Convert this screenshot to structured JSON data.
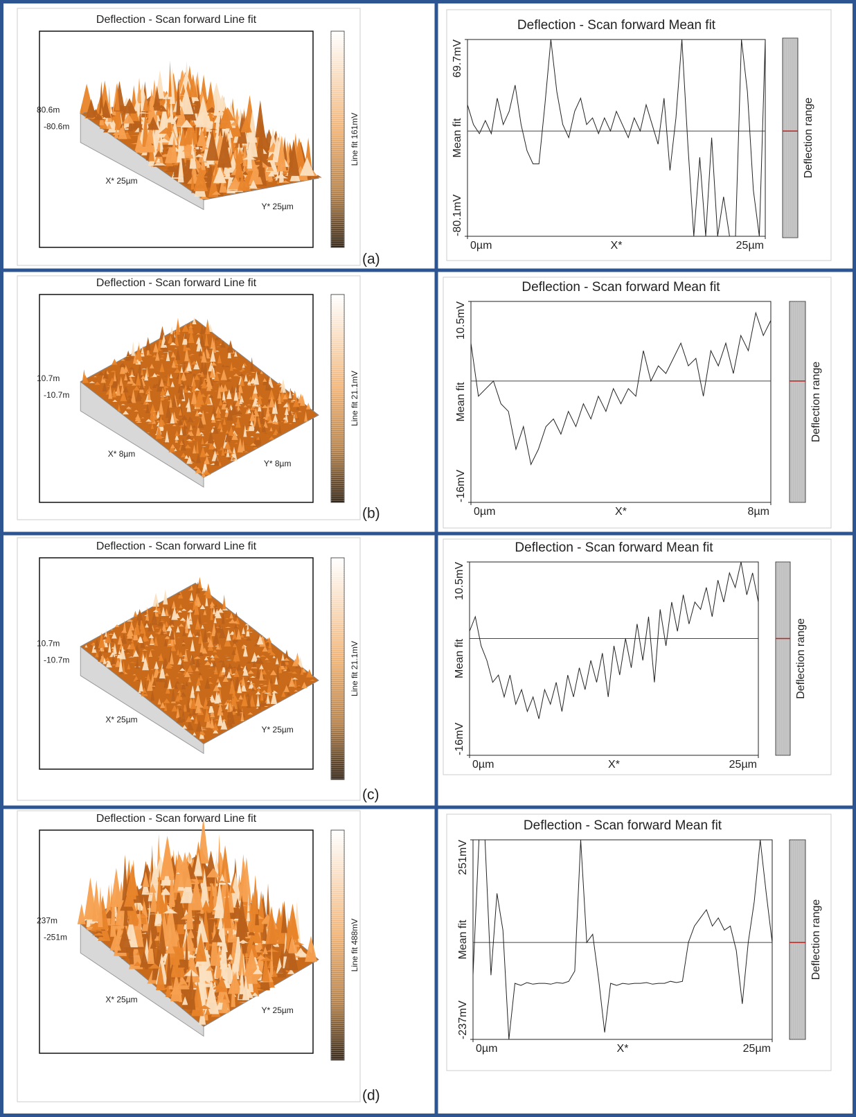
{
  "panel_labels": [
    "(a)",
    "(b)",
    "(c)",
    "(d)"
  ],
  "surfaces": [
    {
      "title": "Deflection - Scan forward   Line fit",
      "z_top": "80.6m",
      "z_bottom": "-80.6m",
      "x_label": "X* 25µm",
      "y_label": "Y* 25µm",
      "colorbar_label": "Line fit 161mV"
    },
    {
      "title": "Deflection - Scan forward   Line fit",
      "z_top": "10.7m",
      "z_bottom": "-10.7m",
      "x_label": "X* 8µm",
      "y_label": "Y* 8µm",
      "colorbar_label": "Line fit 21.1mV"
    },
    {
      "title": "Deflection - Scan forward   Line fit",
      "z_top": "10.7m",
      "z_bottom": "-10.7m",
      "x_label": "X* 25µm",
      "y_label": "Y* 25µm",
      "colorbar_label": "Line fit 21.1mV"
    },
    {
      "title": "Deflection - Scan forward   Line fit",
      "z_top": "237m",
      "z_bottom": "-251m",
      "x_label": "X* 25µm",
      "y_label": "Y* 25µm",
      "colorbar_label": "Line fit 488mV"
    }
  ],
  "chart_data": [
    {
      "type": "line",
      "title": "Deflection - Scan forward   Mean fit",
      "y_label": "Mean fit",
      "x_label": "X*",
      "side_label": "Deflection range",
      "color": "#222222",
      "hline": 0,
      "xlim": [
        0,
        25
      ],
      "xticks": [
        {
          "value": 0,
          "label": "0µm"
        },
        {
          "value": 25,
          "label": "25µm"
        }
      ],
      "ylim": [
        -80.1,
        69.7
      ],
      "yticks": [
        {
          "value": -80.1,
          "label": "-80.1mV"
        },
        {
          "value": 69.7,
          "label": "69.7mV"
        }
      ],
      "x": [
        0,
        0.5,
        1,
        1.5,
        2,
        2.5,
        3,
        3.5,
        4,
        4.5,
        5,
        5.5,
        6,
        6.5,
        7,
        7.5,
        8,
        8.5,
        9,
        9.5,
        10,
        10.5,
        11,
        11.5,
        12,
        12.5,
        13,
        13.5,
        14,
        14.5,
        15,
        15.5,
        16,
        16.5,
        17,
        17.5,
        18,
        18.5,
        19,
        19.5,
        20,
        20.5,
        21,
        21.5,
        22,
        22.5,
        23,
        23.5,
        24,
        24.5,
        25
      ],
      "values": [
        20,
        5,
        -2,
        8,
        -2,
        25,
        5,
        15,
        35,
        5,
        -15,
        -25,
        -25,
        20,
        69.7,
        30,
        5,
        -5,
        15,
        25,
        5,
        10,
        -2,
        10,
        0,
        15,
        5,
        -5,
        10,
        0,
        20,
        5,
        -10,
        25,
        -30,
        10,
        69.7,
        -10,
        -80.1,
        -20,
        -80.1,
        -5,
        -80.1,
        -50,
        -80.1,
        -80.1,
        69.7,
        30,
        -45,
        -80.1,
        69.7
      ]
    },
    {
      "type": "line",
      "title": "Deflection - Scan forward   Mean fit",
      "y_label": "Mean fit",
      "x_label": "X*",
      "side_label": "Deflection range",
      "color": "#222222",
      "hline": 0,
      "xlim": [
        0,
        8
      ],
      "xticks": [
        {
          "value": 0,
          "label": "0µm"
        },
        {
          "value": 8,
          "label": "8µm"
        }
      ],
      "ylim": [
        -16,
        10.5
      ],
      "yticks": [
        {
          "value": -16,
          "label": "-16mV"
        },
        {
          "value": 10.5,
          "label": "10.5mV"
        }
      ],
      "x": [
        0,
        0.2,
        0.4,
        0.6,
        0.8,
        1,
        1.2,
        1.4,
        1.6,
        1.8,
        2,
        2.2,
        2.4,
        2.6,
        2.8,
        3,
        3.2,
        3.4,
        3.6,
        3.8,
        4,
        4.2,
        4.4,
        4.6,
        4.8,
        5,
        5.2,
        5.4,
        5.6,
        5.8,
        6,
        6.2,
        6.4,
        6.6,
        6.8,
        7,
        7.2,
        7.4,
        7.6,
        7.8,
        8
      ],
      "values": [
        5,
        -2,
        -1,
        0,
        -3,
        -4,
        -9,
        -6,
        -11,
        -9,
        -6,
        -5,
        -7,
        -4,
        -6,
        -3,
        -5,
        -2,
        -4,
        -1,
        -3,
        -1,
        -2,
        4,
        0,
        2,
        1,
        3,
        5,
        2,
        3,
        -2,
        4,
        2,
        5,
        1,
        6,
        4,
        9,
        6,
        8
      ]
    },
    {
      "type": "line",
      "title": "Deflection - Scan forward   Mean fit",
      "y_label": "Mean fit",
      "x_label": "X*",
      "side_label": "Deflection range",
      "color": "#222222",
      "hline": 0,
      "xlim": [
        0,
        25
      ],
      "xticks": [
        {
          "value": 0,
          "label": "0µm"
        },
        {
          "value": 25,
          "label": "25µm"
        }
      ],
      "ylim": [
        -16,
        10.5
      ],
      "yticks": [
        {
          "value": -16,
          "label": "-16mV"
        },
        {
          "value": 10.5,
          "label": "10.5mV"
        }
      ],
      "x": [
        0,
        0.5,
        1,
        1.5,
        2,
        2.5,
        3,
        3.5,
        4,
        4.5,
        5,
        5.5,
        6,
        6.5,
        7,
        7.5,
        8,
        8.5,
        9,
        9.5,
        10,
        10.5,
        11,
        11.5,
        12,
        12.5,
        13,
        13.5,
        14,
        14.5,
        15,
        15.5,
        16,
        16.5,
        17,
        17.5,
        18,
        18.5,
        19,
        19.5,
        20,
        20.5,
        21,
        21.5,
        22,
        22.5,
        23,
        23.5,
        24,
        24.5,
        25
      ],
      "values": [
        1,
        3,
        -1,
        -3,
        -6,
        -5,
        -8,
        -5,
        -9,
        -7,
        -10,
        -8,
        -11,
        -7,
        -9,
        -6,
        -10,
        -5,
        -8,
        -4,
        -7,
        -3,
        -6,
        -2,
        -8,
        -1,
        -5,
        0,
        -4,
        2,
        -3,
        3,
        -6,
        4,
        -1,
        5,
        1,
        6,
        2,
        5,
        4,
        7,
        3,
        8,
        5,
        9,
        7,
        10.5,
        6,
        9,
        5
      ]
    },
    {
      "type": "line",
      "title": "Deflection - Scan forward   Mean fit",
      "y_label": "Mean fit",
      "x_label": "X*",
      "side_label": "Deflection range",
      "color": "#222222",
      "hline": 0,
      "xlim": [
        0,
        25
      ],
      "xticks": [
        {
          "value": 0,
          "label": "0µm"
        },
        {
          "value": 25,
          "label": "25µm"
        }
      ],
      "ylim": [
        -237,
        251
      ],
      "yticks": [
        {
          "value": -237,
          "label": "-237mV"
        },
        {
          "value": 251,
          "label": "251mV"
        }
      ],
      "x": [
        0,
        0.5,
        1,
        1.5,
        2,
        2.5,
        3,
        3.5,
        4,
        4.5,
        5,
        5.5,
        6,
        6.5,
        7,
        7.5,
        8,
        8.5,
        9,
        9.5,
        10,
        10.5,
        11,
        11.5,
        12,
        12.5,
        13,
        13.5,
        14,
        14.5,
        15,
        15.5,
        16,
        16.5,
        17,
        17.5,
        18,
        18.5,
        19,
        19.5,
        20,
        20.5,
        21,
        21.5,
        22,
        22.5,
        23,
        23.5,
        24,
        24.5,
        25
      ],
      "values": [
        -80,
        251,
        251,
        -80,
        120,
        30,
        -237,
        -100,
        -105,
        -98,
        -102,
        -100,
        -100,
        -102,
        -98,
        -100,
        -95,
        -70,
        251,
        0,
        20,
        -90,
        -220,
        -100,
        -105,
        -100,
        -102,
        -100,
        -100,
        -98,
        -102,
        -100,
        -100,
        -95,
        -98,
        -95,
        0,
        40,
        60,
        80,
        40,
        60,
        30,
        40,
        -20,
        -150,
        0,
        100,
        251,
        120,
        0
      ]
    }
  ]
}
